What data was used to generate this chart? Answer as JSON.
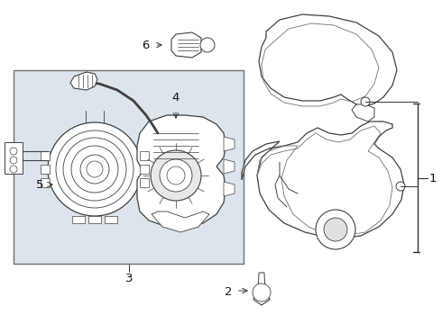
{
  "bg_color": "#ffffff",
  "line_color": "#404040",
  "light_line": "#707070",
  "box_fill": "#dce4ec",
  "box_edge": "#707070",
  "label_color": "#111111",
  "bracket_color": "#333333",
  "arrow_color": "#333333",
  "fig_width": 4.9,
  "fig_height": 3.6,
  "dpi": 100
}
